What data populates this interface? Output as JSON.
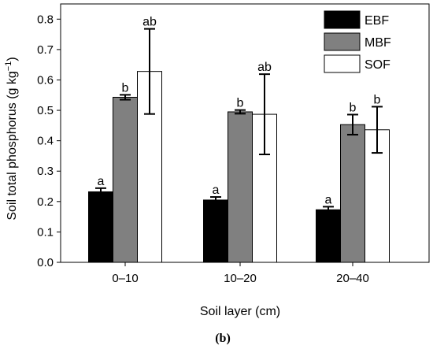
{
  "chart_data": {
    "type": "bar",
    "categories": [
      "0–10",
      "10–20",
      "20–40"
    ],
    "series": [
      {
        "name": "EBF",
        "color": "#000000",
        "values": [
          0.232,
          0.205,
          0.173
        ],
        "errors": [
          0.012,
          0.01,
          0.01
        ],
        "labels": [
          "a",
          "a",
          "a"
        ]
      },
      {
        "name": "MBF",
        "color": "#808080",
        "values": [
          0.543,
          0.495,
          0.453
        ],
        "errors": [
          0.008,
          0.006,
          0.033
        ],
        "labels": [
          "b",
          "b",
          "b"
        ]
      },
      {
        "name": "SOF",
        "color": "#ffffff",
        "values": [
          0.628,
          0.487,
          0.436
        ],
        "errors": [
          0.14,
          0.132,
          0.076
        ],
        "labels": [
          "ab",
          "ab",
          "b"
        ]
      }
    ],
    "yticks": [
      "0.0",
      "0.1",
      "0.2",
      "0.3",
      "0.4",
      "0.5",
      "0.6",
      "0.7",
      "0.8"
    ],
    "ylim": [
      0,
      0.85
    ],
    "ylabel_main": "Soil total phosphorus (g kg",
    "ylabel_sup": "−1",
    "ylabel_end": ")",
    "xlabel": "Soil layer (cm)",
    "legend_position": "top-right",
    "panel_label": "(b)"
  }
}
